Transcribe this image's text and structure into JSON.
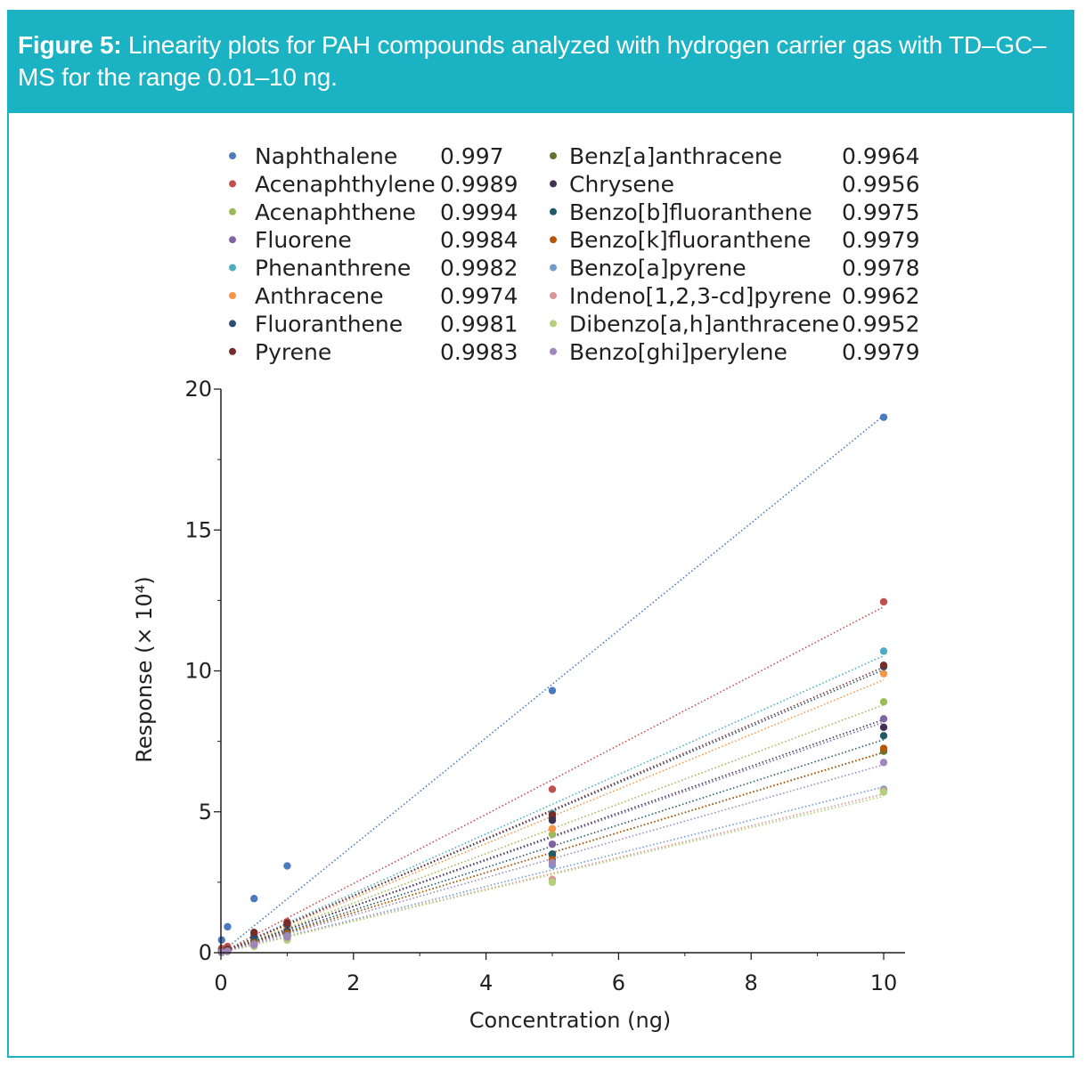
{
  "figure": {
    "label": "Figure 5:",
    "caption": "Linearity plots for PAH compounds analyzed with hydrogen carrier gas with TD–GC–MS for the range 0.01–10 ng."
  },
  "chart_data": {
    "type": "scatter",
    "title": "",
    "xlabel": "Concentration (ng)",
    "ylabel": "Response (× 10⁴)",
    "xlim": [
      0,
      10.3
    ],
    "ylim": [
      0,
      20
    ],
    "xticks": [
      "0",
      "2",
      "4",
      "6",
      "8",
      "10"
    ],
    "yticks": [
      "0",
      "5",
      "10",
      "15",
      "20"
    ],
    "grid": false,
    "legend_position": "top",
    "x": [
      0.01,
      0.1,
      0.5,
      1,
      5,
      10
    ],
    "series": [
      {
        "name": "Naphthalene",
        "r2": "0.997",
        "color": "#4a7bbf",
        "values": [
          0.45,
          0.92,
          1.92,
          3.08,
          9.3,
          19.0
        ]
      },
      {
        "name": "Acenaphthylene",
        "r2": "0.9989",
        "color": "#c0504d",
        "values": [
          0.15,
          0.22,
          0.65,
          1.1,
          5.8,
          12.45
        ]
      },
      {
        "name": "Acenaphthene",
        "r2": "0.9994",
        "color": "#9bbb59",
        "values": [
          0.02,
          0.09,
          0.45,
          0.85,
          4.2,
          8.9
        ]
      },
      {
        "name": "Fluorene",
        "r2": "0.9984",
        "color": "#8064a2",
        "values": [
          0.02,
          0.08,
          0.4,
          0.8,
          3.85,
          8.3
        ]
      },
      {
        "name": "Phenanthrene",
        "r2": "0.9982",
        "color": "#4bacc6",
        "values": [
          0.05,
          0.12,
          0.55,
          1.0,
          4.95,
          10.7
        ]
      },
      {
        "name": "Anthracene",
        "r2": "0.9974",
        "color": "#f79646",
        "values": [
          0.05,
          0.1,
          0.5,
          0.95,
          4.4,
          9.9
        ]
      },
      {
        "name": "Fluoranthene",
        "r2": "0.9981",
        "color": "#2c4d75",
        "values": [
          0.05,
          0.11,
          0.55,
          1.0,
          4.8,
          10.15
        ]
      },
      {
        "name": "Pyrene",
        "r2": "0.9983",
        "color": "#772c2a",
        "values": [
          0.05,
          0.12,
          0.72,
          1.05,
          4.9,
          10.2
        ]
      },
      {
        "name": "Benz[a]anthracene",
        "r2": "0.9964",
        "color": "#5f7530",
        "values": [
          0.02,
          0.06,
          0.35,
          0.7,
          3.45,
          7.15
        ]
      },
      {
        "name": "Chrysene",
        "r2": "0.9956",
        "color": "#403152",
        "values": [
          0.02,
          0.07,
          0.38,
          0.75,
          4.7,
          8.0
        ]
      },
      {
        "name": "Benzo[b]fluoranthene",
        "r2": "0.9975",
        "color": "#215968",
        "values": [
          0.02,
          0.07,
          0.4,
          0.72,
          3.5,
          7.7
        ]
      },
      {
        "name": "Benzo[k]fluoranthene",
        "r2": "0.9979",
        "color": "#b65708",
        "values": [
          0.02,
          0.06,
          0.35,
          0.68,
          3.3,
          7.25
        ]
      },
      {
        "name": "Benzo[a]pyrene",
        "r2": "0.9978",
        "color": "#729aca",
        "values": [
          0.02,
          0.05,
          0.3,
          0.6,
          3.1,
          5.8
        ]
      },
      {
        "name": "Indeno[1,2,3-cd]pyrene",
        "r2": "0.9962",
        "color": "#d99694",
        "values": [
          0.01,
          0.04,
          0.25,
          0.5,
          2.6,
          5.75
        ]
      },
      {
        "name": "Dibenzo[a,h]anthracene",
        "r2": "0.9952",
        "color": "#b3d07b",
        "values": [
          0.01,
          0.04,
          0.22,
          0.45,
          2.5,
          5.7
        ]
      },
      {
        "name": "Benzo[ghi]perylene",
        "r2": "0.9979",
        "color": "#9f87bb",
        "values": [
          0.01,
          0.05,
          0.28,
          0.55,
          3.2,
          6.75
        ]
      }
    ]
  }
}
